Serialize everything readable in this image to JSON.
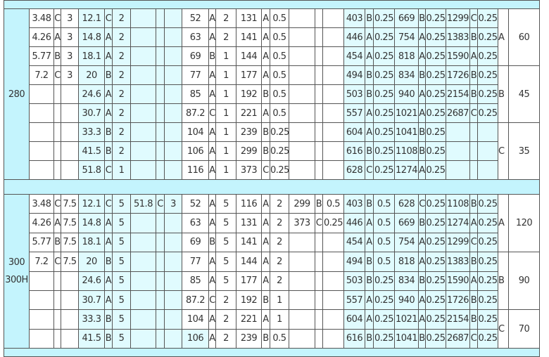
{
  "colors": {
    "band": "#c4f4fd",
    "highlight": "#e0fbfe",
    "border": "#555555"
  },
  "sections": [
    {
      "model": [
        "280"
      ],
      "rows": [
        [
          "3.48",
          "C",
          "3",
          "12.1",
          "C",
          "2",
          "",
          "",
          "",
          "52",
          "A",
          "2",
          "131",
          "A",
          "0.5",
          "",
          "",
          "",
          "403",
          "B",
          "0.25",
          "669",
          "B",
          "0.25",
          "1299",
          "C",
          "0.25"
        ],
        [
          "4.26",
          "A",
          "3",
          "14.8",
          "A",
          "2",
          "",
          "",
          "",
          "63",
          "A",
          "2",
          "141",
          "A",
          "0.5",
          "",
          "",
          "",
          "446",
          "A",
          "0.25",
          "754",
          "A",
          "0.25",
          "1383",
          "B",
          "0.25"
        ],
        [
          "5.77",
          "B",
          "3",
          "18.1",
          "A",
          "2",
          "",
          "",
          "",
          "69",
          "B",
          "1",
          "144",
          "A",
          "0.5",
          "",
          "",
          "",
          "454",
          "A",
          "0.25",
          "818",
          "A",
          "0.25",
          "1590",
          "A",
          "0.25"
        ],
        [
          "7.2",
          "C",
          "3",
          "20",
          "B",
          "2",
          "",
          "",
          "",
          "77",
          "A",
          "1",
          "177",
          "A",
          "0.5",
          "",
          "",
          "",
          "494",
          "B",
          "0.25",
          "834",
          "B",
          "0.25",
          "1726",
          "B",
          "0.25"
        ],
        [
          "",
          "",
          "",
          "24.6",
          "A",
          "2",
          "",
          "",
          "",
          "85",
          "A",
          "1",
          "192",
          "B",
          "0.5",
          "",
          "",
          "",
          "503",
          "B",
          "0.25",
          "940",
          "A",
          "0.25",
          "2154",
          "B",
          "0.25"
        ],
        [
          "",
          "",
          "",
          "30.7",
          "A",
          "2",
          "",
          "",
          "",
          "87.2",
          "C",
          "1",
          "221",
          "A",
          "0.5",
          "",
          "",
          "",
          "557",
          "A",
          "0.25",
          "1021",
          "A",
          "0.25",
          "2687",
          "C",
          "0.25"
        ],
        [
          "",
          "",
          "",
          "33.3",
          "B",
          "2",
          "",
          "",
          "",
          "104",
          "A",
          "1",
          "239",
          "B",
          "0.25",
          "",
          "",
          "",
          "604",
          "A",
          "0.25",
          "1041",
          "B",
          "0.25",
          "",
          "",
          ""
        ],
        [
          "",
          "",
          "",
          "41.5",
          "B",
          "2",
          "",
          "",
          "",
          "106",
          "A",
          "1",
          "299",
          "B",
          "0.25",
          "",
          "",
          "",
          "616",
          "B",
          "0.25",
          "1108",
          "B",
          "0.25",
          "",
          "",
          ""
        ],
        [
          "",
          "",
          "",
          "51.8",
          "C",
          "1",
          "",
          "",
          "",
          "116",
          "A",
          "1",
          "373",
          "C",
          "0.25",
          "",
          "",
          "",
          "628",
          "C",
          "0.25",
          "1274",
          "A",
          "0.25",
          "",
          "",
          ""
        ]
      ],
      "groups": [
        {
          "class": "A",
          "value": "60",
          "rows": 3
        },
        {
          "class": "B",
          "value": "45",
          "rows": 3
        },
        {
          "class": "C",
          "value": "35",
          "rows": 3
        }
      ]
    },
    {
      "model": [
        "300",
        "300H"
      ],
      "rows": [
        [
          "3.48",
          "C",
          "7.5",
          "12.1",
          "C",
          "5",
          "51.8",
          "C",
          "3",
          "52",
          "A",
          "5",
          "116",
          "A",
          "2",
          "299",
          "B",
          "0.5",
          "403",
          "B",
          "0.5",
          "628",
          "C",
          "0.25",
          "1108",
          "B",
          "0.25"
        ],
        [
          "4.26",
          "A",
          "7.5",
          "14.8",
          "A",
          "5",
          "",
          "",
          "",
          "63",
          "A",
          "5",
          "131",
          "A",
          "2",
          "373",
          "C",
          "0.25",
          "446",
          "A",
          "0.5",
          "669",
          "B",
          "0.25",
          "1274",
          "A",
          "0.25"
        ],
        [
          "5.77",
          "B",
          "7.5",
          "18.1",
          "A",
          "5",
          "",
          "",
          "",
          "69",
          "B",
          "5",
          "141",
          "A",
          "2",
          "",
          "",
          "",
          "454",
          "A",
          "0.5",
          "754",
          "A",
          "0.25",
          "1299",
          "C",
          "0.25"
        ],
        [
          "7.2",
          "C",
          "7.5",
          "20",
          "B",
          "5",
          "",
          "",
          "",
          "77",
          "A",
          "5",
          "144",
          "A",
          "2",
          "",
          "",
          "",
          "494",
          "B",
          "0.5",
          "818",
          "A",
          "0.25",
          "1383",
          "B",
          "0.25"
        ],
        [
          "",
          "",
          "",
          "24.6",
          "A",
          "5",
          "",
          "",
          "",
          "85",
          "A",
          "5",
          "177",
          "A",
          "2",
          "",
          "",
          "",
          "503",
          "B",
          "0.25",
          "834",
          "B",
          "0.25",
          "1590",
          "A",
          "0.25"
        ],
        [
          "",
          "",
          "",
          "30.7",
          "A",
          "5",
          "",
          "",
          "",
          "87.2",
          "C",
          "2",
          "192",
          "B",
          "1",
          "",
          "",
          "",
          "557",
          "A",
          "0.25",
          "940",
          "A",
          "0.25",
          "1726",
          "B",
          "0.25"
        ],
        [
          "",
          "",
          "",
          "33.3",
          "B",
          "5",
          "",
          "",
          "",
          "104",
          "A",
          "2",
          "221",
          "A",
          "1",
          "",
          "",
          "",
          "604",
          "A",
          "0.25",
          "1021",
          "A",
          "0.25",
          "2154",
          "B",
          "0.25"
        ],
        [
          "",
          "",
          "",
          "41.5",
          "B",
          "5",
          "",
          "",
          "",
          "106",
          "A",
          "2",
          "239",
          "B",
          "0.5",
          "",
          "",
          "",
          "616",
          "B",
          "0.25",
          "1041",
          "B",
          "0.25",
          "2687",
          "C",
          "0.25"
        ]
      ],
      "groups": [
        {
          "class": "A",
          "value": "120",
          "rows": 3
        },
        {
          "class": "B",
          "value": "90",
          "rows": 3
        },
        {
          "class": "C",
          "value": "70",
          "rows": 2
        }
      ]
    }
  ]
}
